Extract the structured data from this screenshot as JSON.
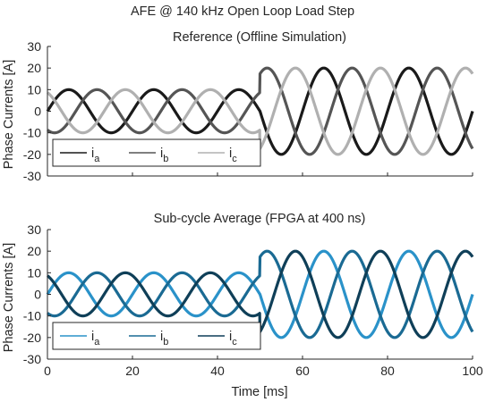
{
  "figure": {
    "suptitle": "AFE @ 140 kHz Open Loop Load Step",
    "xlabel": "Time [ms]"
  },
  "chart_data": [
    {
      "type": "line",
      "title": "Reference (Offline Simulation)",
      "xlabel": "",
      "ylabel": "Phase Currents [A]",
      "xlim": [
        0,
        100
      ],
      "ylim": [
        -30,
        30
      ],
      "yticks": [
        "30",
        "20",
        "10",
        "0",
        "-10",
        "-20",
        "-30"
      ],
      "xticks": [],
      "grid": false,
      "legend_position": "bottom-left",
      "step_time_ms": 50,
      "frequency_hz": 50,
      "amplitude_before": 10,
      "amplitude_after": 20,
      "series": [
        {
          "name": "i",
          "subscript": "a",
          "color": "#1a1a1a",
          "phase_deg": 0
        },
        {
          "name": "i",
          "subscript": "b",
          "color": "#555555",
          "phase_deg": -120
        },
        {
          "name": "i",
          "subscript": "c",
          "color": "#b0b0b0",
          "phase_deg": 120
        }
      ]
    },
    {
      "type": "line",
      "title": "Sub-cycle Average (FPGA at 400 ns)",
      "xlabel": "Time [ms]",
      "ylabel": "Phase Currents [A]",
      "xlim": [
        0,
        100
      ],
      "ylim": [
        -30,
        30
      ],
      "yticks": [
        "30",
        "20",
        "10",
        "0",
        "-10",
        "-20",
        "-30"
      ],
      "xticks": [
        "0",
        "20",
        "40",
        "60",
        "80",
        "100"
      ],
      "grid": false,
      "legend_position": "bottom-left",
      "step_time_ms": 50,
      "frequency_hz": 50,
      "amplitude_before": 10,
      "amplitude_after": 20,
      "series": [
        {
          "name": "i",
          "subscript": "a",
          "color": "#2a92c9",
          "phase_deg": 0
        },
        {
          "name": "i",
          "subscript": "b",
          "color": "#1a6a93",
          "phase_deg": -120
        },
        {
          "name": "i",
          "subscript": "c",
          "color": "#0f3f58",
          "phase_deg": 120
        }
      ]
    }
  ]
}
